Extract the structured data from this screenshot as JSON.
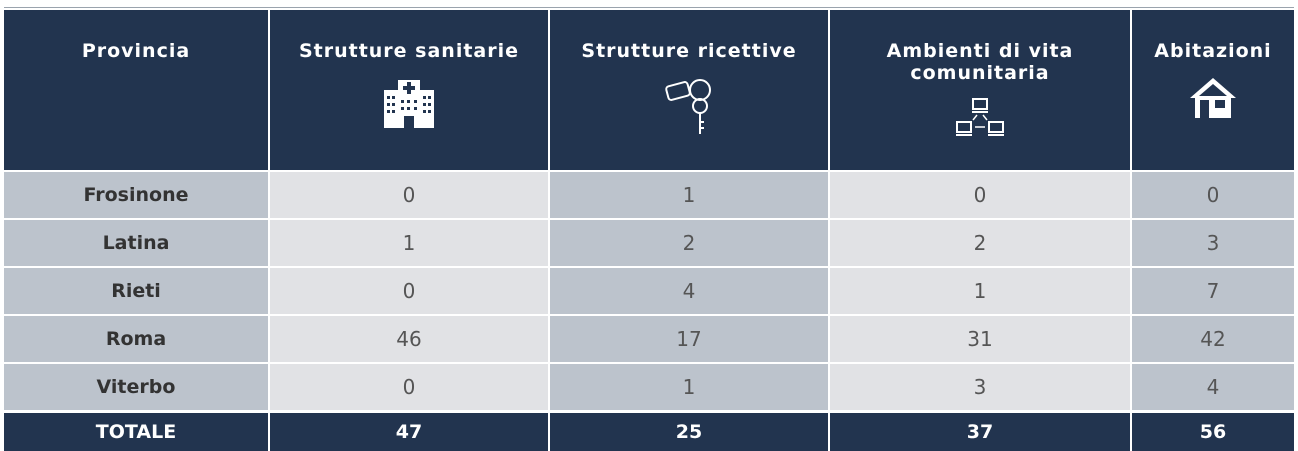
{
  "header": {
    "columns": [
      "Provincia",
      "Strutture sanitarie",
      "Strutture ricettive",
      "Ambienti di vita comunitaria",
      "Abitazioni"
    ]
  },
  "rows": [
    {
      "cells": [
        "Frosinone",
        "0",
        "1",
        "0",
        "0"
      ]
    },
    {
      "cells": [
        "Latina",
        "1",
        "2",
        "2",
        "3"
      ]
    },
    {
      "cells": [
        "Rieti",
        "0",
        "4",
        "1",
        "7"
      ]
    },
    {
      "cells": [
        "Roma",
        "46",
        "17",
        "31",
        "42"
      ]
    },
    {
      "cells": [
        "Viterbo",
        "0",
        "1",
        "3",
        "4"
      ]
    }
  ],
  "total": {
    "cells": [
      "TOTALE",
      "47",
      "25",
      "37",
      "56"
    ]
  }
}
